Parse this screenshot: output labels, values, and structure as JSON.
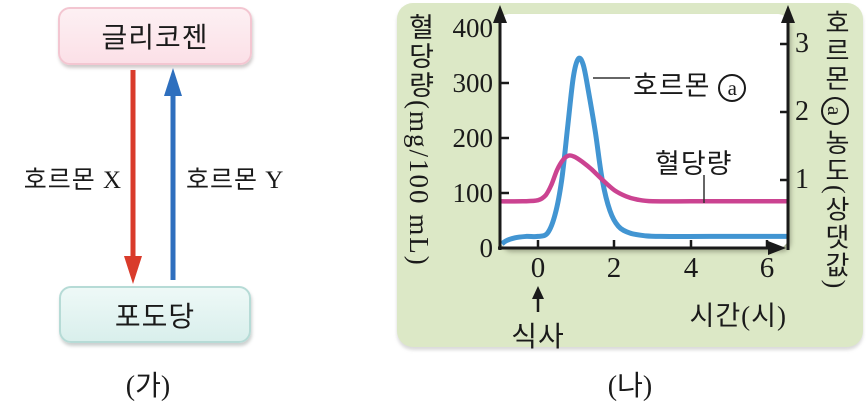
{
  "figure": {
    "caption_left": "(가)",
    "caption_right": "(나)"
  },
  "diagram": {
    "glycogen_label": "글리코젠",
    "glucose_label": "포도당",
    "hormone_x_label": "호르몬 X",
    "hormone_y_label": "호르몬 Y",
    "arrow_down_color": "#d93b2b",
    "arrow_up_color": "#2e6fbe",
    "glycogen_box_fill": "#fbe0e7",
    "glucose_box_fill": "#d9efec"
  },
  "chart": {
    "panel_bg": "#dce8c6",
    "ylabel_left_korean": "혈당량",
    "ylabel_left_unit": "(mg/100 mL)",
    "ylabel_right_pre": "호르몬",
    "ylabel_right_mark": "a",
    "ylabel_right_post": "농도(상댓값)",
    "xlabel": "시간(시)",
    "meal_label": "식사",
    "hormone_curve_label": "호르몬",
    "hormone_curve_mark": "a",
    "glucose_curve_label": "혈당량",
    "ytick_labels_left": [
      "400",
      "300",
      "200",
      "100",
      "0"
    ],
    "ytick_labels_right": [
      "3",
      "2",
      "1"
    ],
    "xtick_labels": [
      "0",
      "2",
      "4",
      "6"
    ]
  },
  "chart_data": {
    "type": "line",
    "title": "",
    "xlabel": "시간(시)",
    "ylabel_left": "혈당량 (mg/100 mL)",
    "ylabel_right": "호르몬 ⓐ 농도(상댓값)",
    "xlim": [
      -1,
      6.5
    ],
    "ylim_left": [
      0,
      400
    ],
    "ylim_right": [
      0,
      3.4
    ],
    "xticks": [
      0,
      2,
      4,
      6
    ],
    "yticks_left": [
      0,
      100,
      200,
      300,
      400
    ],
    "yticks_right": [
      1,
      2,
      3
    ],
    "grid": false,
    "legend_position": "inline-annotations",
    "annotations": [
      {
        "text": "식사",
        "x": 0,
        "type": "up-arrow-below-axis"
      },
      {
        "text": "호르몬 ⓐ",
        "points_to": "hormone curve near peak"
      },
      {
        "text": "혈당량",
        "points_to": "blood glucose flat section at x≈4.3"
      }
    ],
    "series": [
      {
        "name": "호르몬 ⓐ",
        "axis": "right",
        "color": "#4295d2",
        "points": [
          [
            -1.0,
            0.03
          ],
          [
            -0.85,
            0.1
          ],
          [
            -0.6,
            0.15
          ],
          [
            -0.3,
            0.17
          ],
          [
            0,
            0.17
          ],
          [
            0.25,
            0.22
          ],
          [
            0.45,
            0.5
          ],
          [
            0.62,
            1.0
          ],
          [
            0.78,
            1.8
          ],
          [
            0.92,
            2.5
          ],
          [
            1.05,
            2.78
          ],
          [
            1.18,
            2.7
          ],
          [
            1.32,
            2.3
          ],
          [
            1.5,
            1.7
          ],
          [
            1.68,
            1.0
          ],
          [
            1.88,
            0.55
          ],
          [
            2.1,
            0.32
          ],
          [
            2.4,
            0.22
          ],
          [
            2.8,
            0.18
          ],
          [
            3.2,
            0.17
          ],
          [
            4.5,
            0.17
          ],
          [
            6.5,
            0.17
          ]
        ]
      },
      {
        "name": "혈당량",
        "axis": "left",
        "color": "#cb4391",
        "points": [
          [
            -1.0,
            85
          ],
          [
            -0.4,
            85
          ],
          [
            0,
            87
          ],
          [
            0.2,
            96
          ],
          [
            0.35,
            115
          ],
          [
            0.5,
            142
          ],
          [
            0.65,
            160
          ],
          [
            0.8,
            168
          ],
          [
            0.95,
            166
          ],
          [
            1.15,
            157
          ],
          [
            1.4,
            143
          ],
          [
            1.7,
            123
          ],
          [
            2.0,
            105
          ],
          [
            2.3,
            94
          ],
          [
            2.6,
            88
          ],
          [
            3.0,
            85
          ],
          [
            4.0,
            85
          ],
          [
            5.0,
            85
          ],
          [
            6.5,
            85
          ]
        ]
      }
    ]
  }
}
